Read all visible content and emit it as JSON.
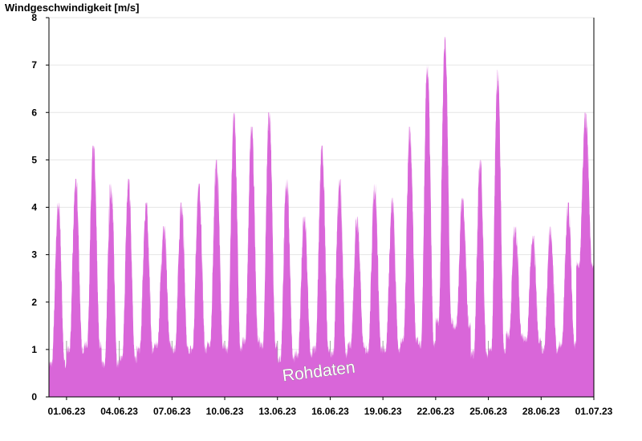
{
  "chart_data": {
    "type": "area",
    "title": "Windgeschwindigkeit [m/s]",
    "xlabel": "",
    "ylabel": "Windgeschwindigkeit [m/s]",
    "ylim": [
      0,
      8
    ],
    "y_ticks": [
      0,
      1,
      2,
      3,
      4,
      5,
      6,
      7,
      8
    ],
    "x_tick_labels": [
      "01.06.23",
      "04.06.23",
      "07.06.23",
      "10.06.23",
      "13.06.23",
      "16.06.23",
      "19.06.23",
      "22.06.23",
      "25.06.23",
      "28.06.23",
      "01.07.23"
    ],
    "x_start": "2023-05-31",
    "x_end": "2023-07-01",
    "grid": true,
    "color": "#d966d9",
    "watermark": "Rohdaten",
    "series": [
      {
        "dates": [
          "2023-05-31",
          "2023-06-01",
          "2023-06-02",
          "2023-06-03",
          "2023-06-04",
          "2023-06-05",
          "2023-06-06",
          "2023-06-07",
          "2023-06-08",
          "2023-06-09",
          "2023-06-10",
          "2023-06-11",
          "2023-06-12",
          "2023-06-13",
          "2023-06-14",
          "2023-06-15",
          "2023-06-16",
          "2023-06-17",
          "2023-06-18",
          "2023-06-19",
          "2023-06-20",
          "2023-06-21",
          "2023-06-22",
          "2023-06-23",
          "2023-06-24",
          "2023-06-25",
          "2023-06-26",
          "2023-06-27",
          "2023-06-28",
          "2023-06-29",
          "2023-06-30"
        ],
        "daily_min": [
          0.7,
          1.0,
          1.1,
          0.7,
          0.8,
          1.0,
          1.1,
          1.0,
          1.0,
          1.1,
          1.0,
          1.2,
          1.1,
          0.8,
          0.9,
          1.0,
          0.9,
          1.1,
          1.0,
          1.0,
          1.2,
          1.1,
          1.6,
          1.5,
          0.9,
          1.0,
          1.3,
          1.2,
          1.0,
          1.1,
          2.8
        ],
        "daily_max": [
          4.1,
          4.6,
          5.3,
          4.5,
          4.6,
          4.1,
          3.6,
          4.1,
          4.5,
          5.0,
          6.0,
          5.7,
          6.0,
          4.6,
          3.8,
          5.3,
          4.6,
          3.8,
          4.5,
          4.2,
          5.7,
          7.0,
          7.6,
          4.2,
          5.0,
          6.9,
          3.6,
          3.4,
          3.6,
          4.1,
          6.0
        ]
      }
    ]
  }
}
